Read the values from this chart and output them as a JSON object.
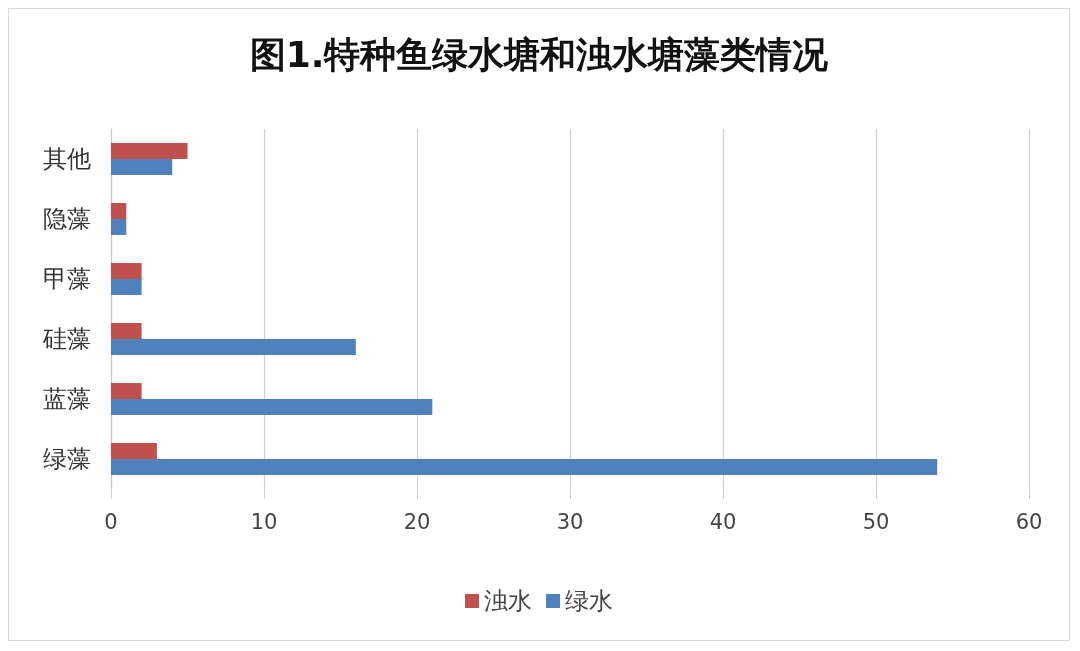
{
  "chart_data": {
    "type": "bar",
    "orientation": "horizontal",
    "title": "图1.特种鱼绿水塘和浊水塘藻类情况",
    "categories": [
      "其他",
      "隐藻",
      "甲藻",
      "硅藻",
      "蓝藻",
      "绿藻"
    ],
    "series": [
      {
        "name": "浊水",
        "color": "#c0504d",
        "values": [
          5,
          1,
          2,
          2,
          2,
          3
        ]
      },
      {
        "name": "绿水",
        "color": "#4f81bd",
        "values": [
          4,
          1,
          2,
          16,
          21,
          54
        ]
      }
    ],
    "xlim": [
      0,
      60
    ],
    "xticks": [
      0,
      10,
      20,
      30,
      40,
      50,
      60
    ],
    "grid": "x",
    "legend": "bottom"
  }
}
